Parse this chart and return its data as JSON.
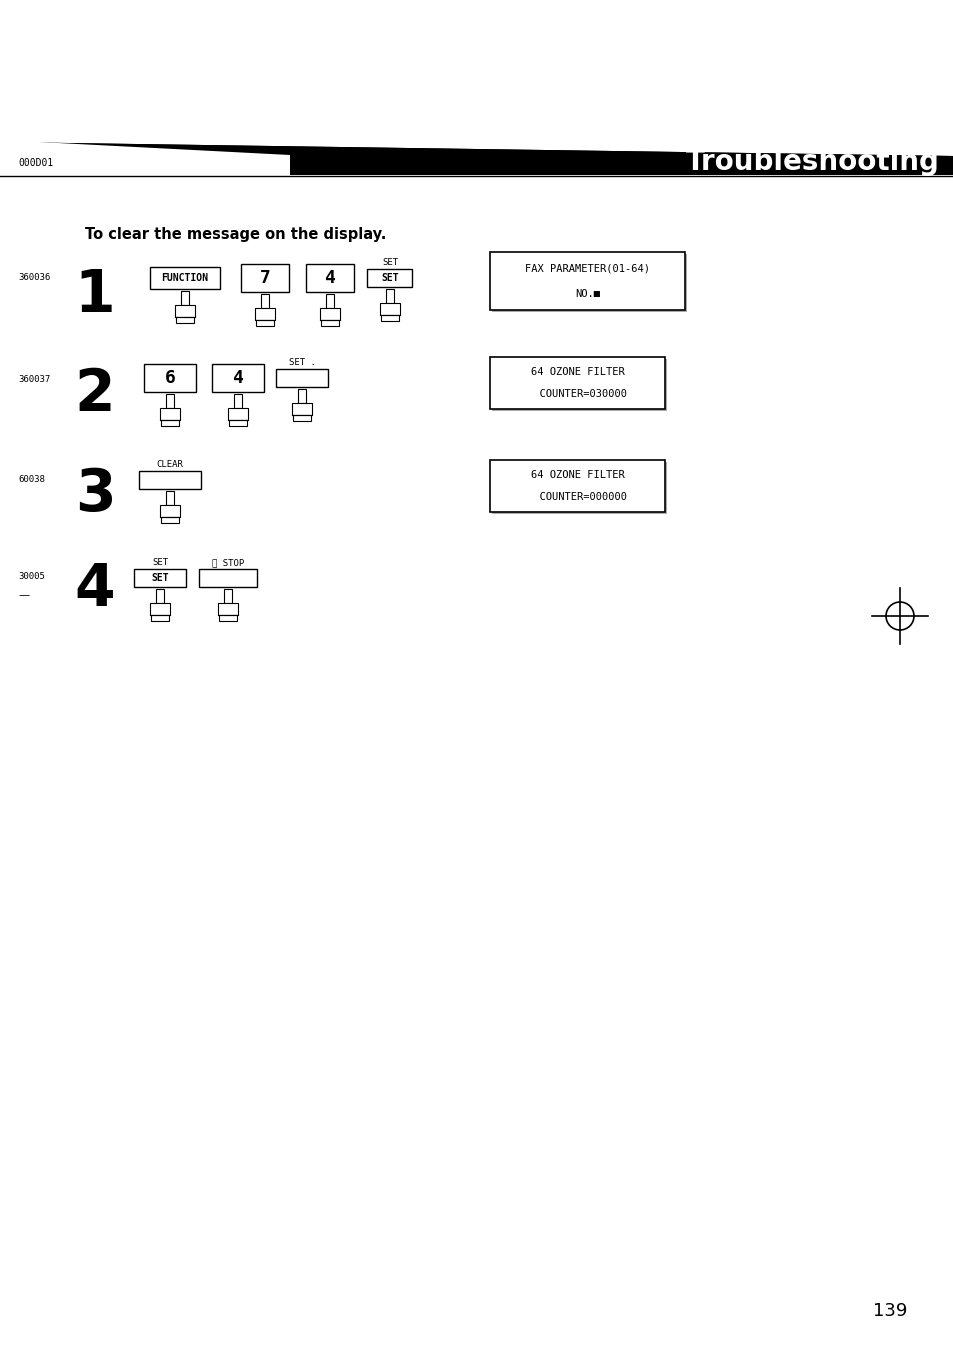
{
  "bg_color": "#ffffff",
  "page_num": "139",
  "header_label": "000D01",
  "header_title": "Troubleshooting",
  "intro_text": "To clear the message on the display.",
  "step1_id": "360036",
  "step2_id": "360037",
  "step3_id": "60038",
  "step4_id": "30005",
  "disp1_line1": "FAX PARAMETER(01-64)",
  "disp1_line2": "NO.■",
  "disp2_line1": "64 OZONE FILTER",
  "disp2_line2": "  COUNTER=030000",
  "disp3_line1": "64 OZONE FILTER",
  "disp3_line2": "  COUNTER=000000"
}
